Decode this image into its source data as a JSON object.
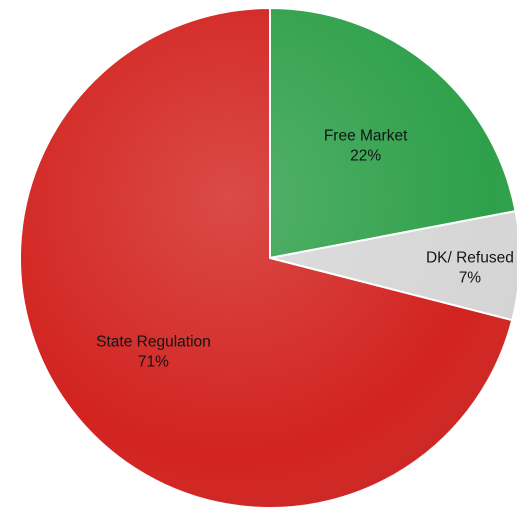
{
  "chart_data": {
    "type": "pie",
    "slices": [
      {
        "label": "Free Market",
        "value": 22,
        "value_label": "22%",
        "color": "#2ea04a"
      },
      {
        "label": "DK/ Refused",
        "value": 7,
        "value_label": "7%",
        "color": "#d6d6d6"
      },
      {
        "label": "State Regulation",
        "value": 71,
        "value_label": "71%",
        "color": "#d2231f"
      }
    ],
    "start": "12 o'clock",
    "direction": "clockwise",
    "legend": "none",
    "labels": "inside slices"
  }
}
